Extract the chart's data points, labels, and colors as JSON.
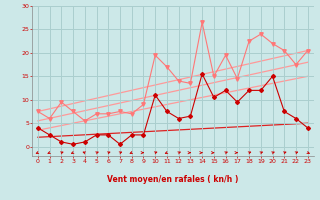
{
  "xlabel": "Vent moyen/en rafales ( kn/h )",
  "ylim": [
    -2,
    30
  ],
  "xlim": [
    -0.5,
    23.5
  ],
  "yticks": [
    0,
    5,
    10,
    15,
    20,
    25,
    30
  ],
  "xticks": [
    0,
    1,
    2,
    3,
    4,
    5,
    6,
    7,
    8,
    9,
    10,
    11,
    12,
    13,
    14,
    15,
    16,
    17,
    18,
    19,
    20,
    21,
    22,
    23
  ],
  "bg_color": "#cce8e8",
  "grid_color": "#aacece",
  "trend1_x": [
    0,
    23
  ],
  "trend1_y": [
    7.5,
    20.5
  ],
  "trend1_color": "#ff9999",
  "trend2_x": [
    0,
    23
  ],
  "trend2_y": [
    5.5,
    18.0
  ],
  "trend2_color": "#ff9999",
  "trend3_x": [
    0,
    23
  ],
  "trend3_y": [
    3.5,
    15.0
  ],
  "trend3_color": "#ff9999",
  "trend4_x": [
    0,
    23
  ],
  "trend4_y": [
    2.0,
    5.0
  ],
  "trend4_color": "#dd2222",
  "series_light_x": [
    0,
    1,
    2,
    3,
    4,
    5,
    6,
    7,
    8,
    9,
    10,
    11,
    12,
    13,
    14,
    15,
    16,
    17,
    18,
    19,
    20,
    21,
    22,
    23
  ],
  "series_light_y": [
    7.5,
    6.0,
    9.5,
    7.5,
    5.5,
    7.0,
    7.0,
    7.5,
    7.0,
    9.0,
    19.5,
    17.0,
    14.0,
    13.5,
    26.5,
    15.0,
    19.5,
    14.5,
    22.5,
    24.0,
    22.0,
    20.5,
    17.5,
    20.5
  ],
  "series_light_color": "#ff7777",
  "series_dark_x": [
    0,
    1,
    2,
    3,
    4,
    5,
    6,
    7,
    8,
    9,
    10,
    11,
    12,
    13,
    14,
    15,
    16,
    17,
    18,
    19,
    20,
    21,
    22,
    23
  ],
  "series_dark_y": [
    4.0,
    2.5,
    1.0,
    0.5,
    1.0,
    2.5,
    2.5,
    0.5,
    2.5,
    2.5,
    11.0,
    7.5,
    6.0,
    6.5,
    15.5,
    10.5,
    12.0,
    9.5,
    12.0,
    12.0,
    15.0,
    7.5,
    6.0,
    4.0
  ],
  "series_dark_color": "#cc0000",
  "arrow_angles_deg": [
    225,
    225,
    45,
    225,
    315,
    45,
    45,
    45,
    225,
    90,
    45,
    225,
    45,
    90,
    90,
    90,
    45,
    90,
    45,
    45,
    45,
    45,
    45,
    135
  ]
}
